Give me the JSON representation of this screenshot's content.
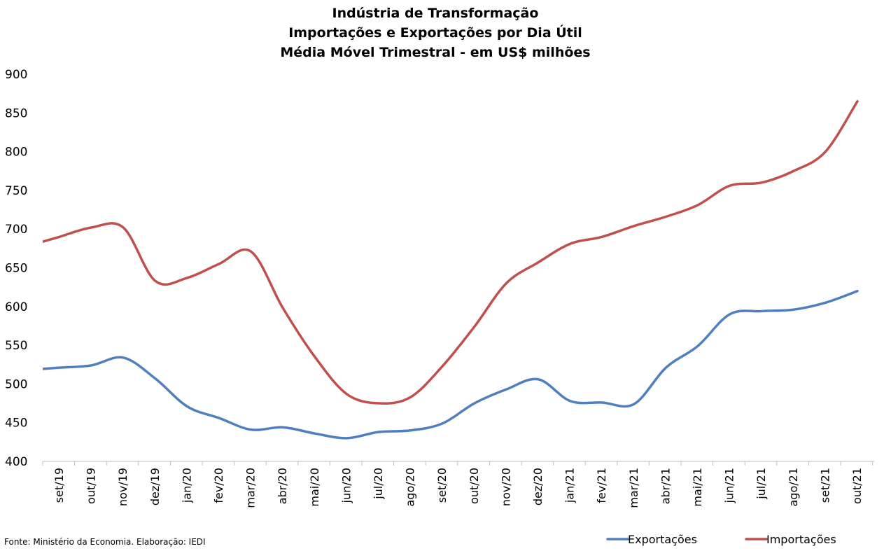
{
  "chart_data": {
    "type": "line",
    "title_lines": [
      "Indústria de Transformação",
      "Importações e Exportações por Dia Útil",
      "Média Móvel Trimestral - em US$ milhões"
    ],
    "xlabel": "",
    "ylabel": "",
    "categories": [
      "set/19",
      "out/19",
      "nov/19",
      "dez/19",
      "jan/20",
      "fev/20",
      "mar/20",
      "abr/20",
      "mai/20",
      "jun/20",
      "jul/20",
      "ago/20",
      "set/20",
      "out/20",
      "nov/20",
      "dez/20",
      "jan/21",
      "fev/21",
      "mar/21",
      "abr/21",
      "mai/21",
      "jun/21",
      "jul/21",
      "ago/21",
      "set/21",
      "out/21"
    ],
    "ylim": [
      400,
      900
    ],
    "yticks": [
      400,
      450,
      500,
      550,
      600,
      650,
      700,
      750,
      800,
      850,
      900
    ],
    "grid": false,
    "legend_position": "bottom-right",
    "series": [
      {
        "name": "Exportações",
        "color": "#4f7fbf",
        "values": [
          521,
          524,
          534,
          507,
          471,
          456,
          441,
          444,
          436,
          430,
          438,
          440,
          449,
          475,
          493,
          506,
          478,
          476,
          474,
          521,
          549,
          590,
          594,
          596,
          605,
          620
        ]
      },
      {
        "name": "Importações",
        "color": "#c0504d",
        "values": [
          690,
          702,
          702,
          633,
          637,
          655,
          671,
          598,
          535,
          487,
          475,
          483,
          523,
          574,
          630,
          657,
          681,
          690,
          704,
          716,
          731,
          756,
          760,
          775,
          800,
          865
        ]
      }
    ],
    "source": "Fonte: Ministério da Economia. Elaboração: IEDI"
  }
}
